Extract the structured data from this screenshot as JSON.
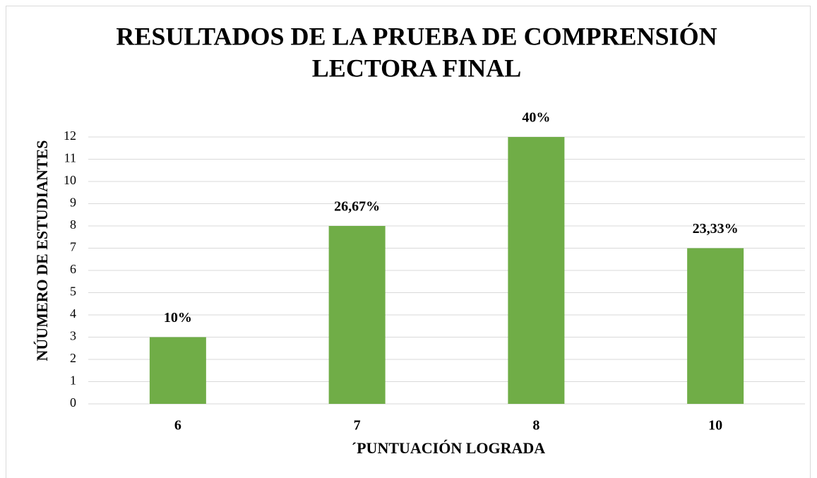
{
  "chart_data": {
    "type": "bar",
    "title": [
      "RESULTADOS DE LA PRUEBA DE COMPRENSIÓN",
      "LECTORA FINAL"
    ],
    "x_label": "´PUNTUACIÓN LOGRADA",
    "y_label": "NÚUMERO DE ESTUDIANTES",
    "categories": [
      "6",
      "7",
      "8",
      "10"
    ],
    "values": [
      3,
      8,
      12,
      7
    ],
    "bar_labels": [
      "10%",
      "26,67%",
      "40%",
      "23,33%"
    ],
    "color": "#70ad47",
    "ylim": [
      0,
      12
    ],
    "yticks": [
      0,
      1,
      2,
      3,
      4,
      5,
      6,
      7,
      8,
      9,
      10,
      11,
      12
    ],
    "grid": true
  }
}
